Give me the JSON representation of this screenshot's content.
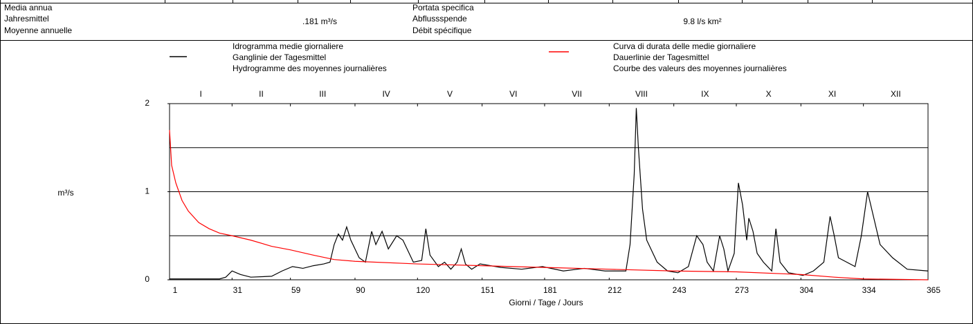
{
  "header": {
    "left_labels": [
      "Media annua",
      "Jahresmittel",
      "Moyenne annuelle"
    ],
    "left_value": ".181 m³/s",
    "right_labels": [
      "Portata specifica",
      "Abflussspende",
      "Débit spécifique"
    ],
    "right_value": "9.8 l/s km²"
  },
  "chart_data": {
    "type": "line",
    "ylabel": "m³/s",
    "xlabel": "Giorni / Tage / Jours",
    "categories": [
      "I",
      "II",
      "III",
      "IV",
      "V",
      "VI",
      "VII",
      "VIII",
      "IX",
      "X",
      "XI",
      "XII"
    ],
    "xlim": [
      1,
      365
    ],
    "xticks": [
      1,
      31,
      59,
      90,
      120,
      151,
      181,
      212,
      243,
      273,
      304,
      334,
      365
    ],
    "ylim": [
      0,
      2
    ],
    "yticks": [
      0,
      1,
      2
    ],
    "ygrid": [
      0.5,
      1,
      1.5
    ],
    "series": [
      {
        "name": [
          "Idrogramma medie giornaliere",
          "Ganglinie der Tagesmittel",
          "Hydrogramme des moyennes journalières"
        ],
        "color": "#000000",
        "x": [
          1,
          25,
          28,
          31,
          35,
          40,
          50,
          55,
          60,
          65,
          70,
          75,
          78,
          80,
          82,
          84,
          86,
          88,
          90,
          92,
          95,
          98,
          100,
          103,
          106,
          110,
          113,
          116,
          118,
          122,
          124,
          126,
          130,
          133,
          136,
          139,
          141,
          143,
          146,
          150,
          160,
          170,
          180,
          190,
          200,
          210,
          220,
          222,
          224,
          225,
          226,
          228,
          230,
          235,
          240,
          245,
          250,
          254,
          257,
          259,
          262,
          265,
          267,
          269,
          272,
          274,
          276,
          278,
          279,
          281,
          283,
          286,
          290,
          292,
          294,
          298,
          305,
          310,
          315,
          318,
          320,
          322,
          326,
          330,
          333,
          336,
          338,
          342,
          348,
          355,
          365
        ],
        "values": [
          0.01,
          0.01,
          0.03,
          0.1,
          0.06,
          0.03,
          0.04,
          0.1,
          0.15,
          0.13,
          0.16,
          0.18,
          0.2,
          0.4,
          0.52,
          0.45,
          0.6,
          0.45,
          0.35,
          0.25,
          0.2,
          0.55,
          0.4,
          0.55,
          0.35,
          0.5,
          0.45,
          0.3,
          0.2,
          0.22,
          0.58,
          0.28,
          0.15,
          0.2,
          0.12,
          0.2,
          0.35,
          0.18,
          0.12,
          0.18,
          0.14,
          0.12,
          0.15,
          0.1,
          0.13,
          0.1,
          0.1,
          0.4,
          1.2,
          1.95,
          1.5,
          0.8,
          0.45,
          0.2,
          0.1,
          0.08,
          0.15,
          0.5,
          0.4,
          0.2,
          0.1,
          0.5,
          0.35,
          0.1,
          0.3,
          1.1,
          0.85,
          0.45,
          0.7,
          0.55,
          0.3,
          0.2,
          0.1,
          0.58,
          0.2,
          0.08,
          0.05,
          0.1,
          0.2,
          0.72,
          0.5,
          0.25,
          0.2,
          0.15,
          0.5,
          1.0,
          0.8,
          0.4,
          0.25,
          0.12,
          0.1
        ]
      },
      {
        "name": [
          "Curva di durata delle medie giornaliere",
          "Dauerlinie der Tagesmittel",
          "Courbe des valeurs des moyennes journalières"
        ],
        "color": "#ff0000",
        "x": [
          1,
          2,
          4,
          7,
          10,
          15,
          20,
          25,
          31,
          40,
          50,
          59,
          70,
          80,
          90,
          120,
          151,
          181,
          212,
          243,
          273,
          304,
          320,
          334,
          365
        ],
        "values": [
          1.7,
          1.3,
          1.1,
          0.9,
          0.78,
          0.65,
          0.58,
          0.53,
          0.5,
          0.45,
          0.38,
          0.34,
          0.28,
          0.23,
          0.21,
          0.18,
          0.16,
          0.14,
          0.12,
          0.1,
          0.09,
          0.06,
          0.03,
          0.01,
          0.0
        ]
      }
    ]
  }
}
